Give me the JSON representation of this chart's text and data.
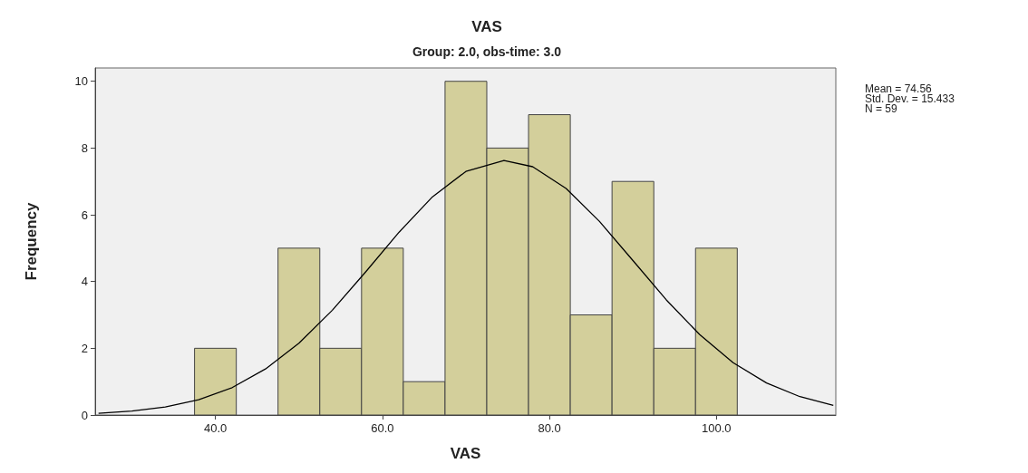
{
  "chart_data": {
    "type": "histogram",
    "title": "VAS",
    "subtitle": "Group: 2.0, obs-time: 3.0",
    "xlabel": "VAS",
    "ylabel": "Frequency",
    "bins": [
      37.5,
      42.5,
      47.5,
      52.5,
      57.5,
      62.5,
      67.5,
      72.5,
      77.5,
      82.5,
      87.5,
      92.5,
      97.5,
      102.5
    ],
    "values": [
      2,
      0,
      5,
      2,
      5,
      1,
      10,
      8,
      9,
      3,
      7,
      2,
      5
    ],
    "color": "#d3cf9b",
    "series": [
      {
        "type": "line",
        "color": "#000000",
        "x": [
          26,
          30,
          34,
          38,
          42,
          46,
          50,
          54,
          58,
          62,
          66,
          70,
          74.56,
          78,
          82,
          86,
          90,
          94,
          98,
          102,
          106,
          110,
          114
        ],
        "values": [
          0.05,
          0.12,
          0.24,
          0.46,
          0.82,
          1.38,
          2.15,
          3.14,
          4.29,
          5.48,
          6.54,
          7.3,
          7.63,
          7.44,
          6.79,
          5.8,
          4.63,
          3.45,
          2.41,
          1.57,
          0.96,
          0.55,
          0.29
        ]
      }
    ],
    "xlim": [
      25.6,
      114.3
    ],
    "xticks": [
      {
        "value": 40,
        "label": "40.0"
      },
      {
        "value": 60,
        "label": "60.0"
      },
      {
        "value": 80,
        "label": "80.0"
      },
      {
        "value": 100,
        "label": "100.0"
      }
    ],
    "ylim": [
      0,
      10.4
    ],
    "yticks": [
      0,
      2,
      4,
      6,
      8,
      10
    ],
    "annotations": [
      "Mean = 74.56",
      "Std. Dev. = 15.433",
      "N = 59"
    ],
    "grid": false,
    "marker": "none",
    "line_style": "solid"
  }
}
